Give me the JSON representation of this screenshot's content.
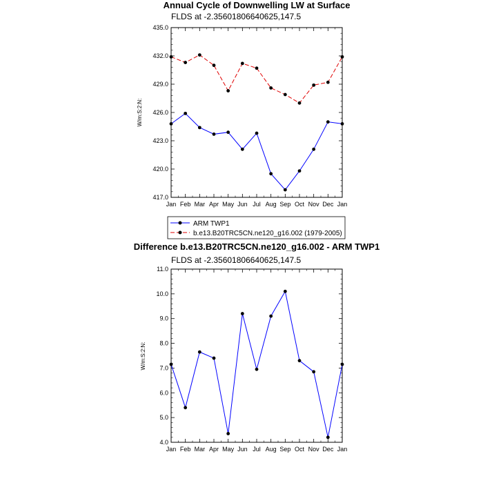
{
  "chart_data": [
    {
      "type": "line",
      "title": "Annual Cycle of Downwelling LW at Surface",
      "subtitle": "FLDS at -2.35601806640625,147.5",
      "ylabel": "W/m:S:2:N:",
      "ylim": [
        417.0,
        435.0
      ],
      "yticks": [
        "417.0",
        "420.0",
        "423.0",
        "426.0",
        "429.0",
        "432.0",
        "435.0"
      ],
      "categories": [
        "Jan",
        "Feb",
        "Mar",
        "Apr",
        "May",
        "Jun",
        "Jul",
        "Aug",
        "Sep",
        "Oct",
        "Nov",
        "Dec",
        "Jan"
      ],
      "legend_position": "bottom",
      "series": [
        {
          "name": "ARM TWP1",
          "color": "#0000ff",
          "dash": "solid",
          "values": [
            424.8,
            425.9,
            424.4,
            423.7,
            423.9,
            422.1,
            423.8,
            419.5,
            417.8,
            419.8,
            422.1,
            425.0,
            424.8
          ]
        },
        {
          "name": "b.e13.B20TRC5CN.ne120_g16.002 (1979-2005)",
          "color": "#e00000",
          "dash": "dashed",
          "values": [
            431.9,
            431.3,
            432.1,
            431.0,
            428.3,
            431.2,
            430.7,
            428.6,
            427.9,
            427.0,
            428.9,
            429.2,
            431.9
          ]
        }
      ]
    },
    {
      "type": "line",
      "title": "Difference b.e13.B20TRC5CN.ne120_g16.002 - ARM TWP1",
      "subtitle": "FLDS at -2.35601806640625,147.5",
      "ylabel": "W/m:S:2:N:",
      "ylim": [
        4.0,
        11.0
      ],
      "yticks": [
        "4.0",
        "5.0",
        "6.0",
        "7.0",
        "8.0",
        "9.0",
        "10.0",
        "11.0"
      ],
      "categories": [
        "Jan",
        "Feb",
        "Mar",
        "Apr",
        "May",
        "Jun",
        "Jul",
        "Aug",
        "Sep",
        "Oct",
        "Nov",
        "Dec",
        "Jan"
      ],
      "series": [
        {
          "color": "#0000ff",
          "dash": "solid",
          "values": [
            7.15,
            5.4,
            7.65,
            7.4,
            4.35,
            9.2,
            6.95,
            9.1,
            10.1,
            7.3,
            6.85,
            4.2,
            7.15
          ]
        }
      ]
    }
  ]
}
